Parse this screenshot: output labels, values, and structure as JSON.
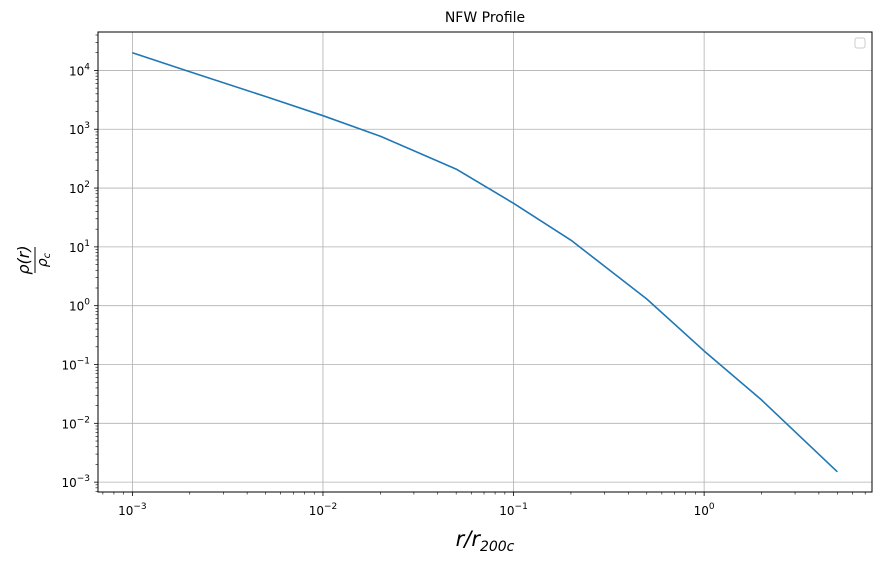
{
  "chart_data": {
    "type": "line",
    "title": "NFW Profile",
    "xlabel": {
      "main": "r/r",
      "sub": "200c"
    },
    "ylabel": {
      "numerator": "ρ(r)",
      "denominator_main": "ρ",
      "denominator_sub": "c"
    },
    "xscale": "log",
    "yscale": "log",
    "xlim": [
      0.00066,
      7.6
    ],
    "ylim": [
      0.00068,
      45000
    ],
    "grid": true,
    "legend": "top-right",
    "x_ticks": [
      {
        "value": 0.001,
        "base": "10",
        "exp": "−3"
      },
      {
        "value": 0.01,
        "base": "10",
        "exp": "−2"
      },
      {
        "value": 0.1,
        "base": "10",
        "exp": "−1"
      },
      {
        "value": 1,
        "base": "10",
        "exp": "0"
      }
    ],
    "y_ticks": [
      {
        "value": 0.001,
        "base": "10",
        "exp": "−3"
      },
      {
        "value": 0.01,
        "base": "10",
        "exp": "−2"
      },
      {
        "value": 0.1,
        "base": "10",
        "exp": "−1"
      },
      {
        "value": 1,
        "base": "10",
        "exp": "0"
      },
      {
        "value": 10,
        "base": "10",
        "exp": "1"
      },
      {
        "value": 100,
        "base": "10",
        "exp": "2"
      },
      {
        "value": 1000,
        "base": "10",
        "exp": "3"
      },
      {
        "value": 10000,
        "base": "10",
        "exp": "4"
      }
    ],
    "series": [
      {
        "color": "#1f77b4",
        "x": [
          0.001,
          0.002,
          0.005,
          0.01,
          0.02,
          0.05,
          0.1,
          0.2,
          0.5,
          1,
          2,
          5
        ],
        "y": [
          20000,
          9500,
          3600,
          1700,
          760,
          210,
          55,
          13,
          1.3,
          0.17,
          0.025,
          0.0015
        ]
      }
    ]
  }
}
